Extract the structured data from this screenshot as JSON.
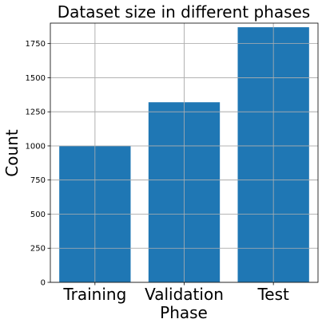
{
  "chart_data": {
    "type": "bar",
    "title": "Dataset size in different phases",
    "xlabel": "Phase",
    "ylabel": "Count",
    "categories": [
      "Training",
      "Validation",
      "Test"
    ],
    "values": [
      1000,
      1320,
      1870
    ],
    "ylim": [
      0,
      1900
    ],
    "yticks": [
      0,
      250,
      500,
      750,
      1000,
      1250,
      1500,
      1750
    ],
    "grid": true,
    "bar_color": "#1f77b4"
  }
}
